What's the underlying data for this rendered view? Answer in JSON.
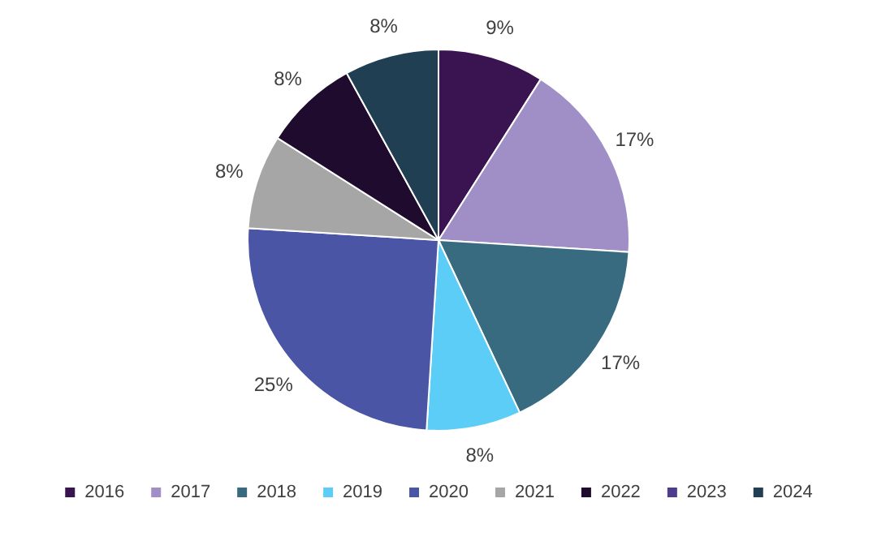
{
  "chart_data": {
    "type": "pie",
    "categories": [
      "2016",
      "2017",
      "2018",
      "2019",
      "2020",
      "2021",
      "2022",
      "2023",
      "2024"
    ],
    "values": [
      9,
      17,
      17,
      8,
      25,
      8,
      8,
      0,
      8
    ],
    "colors": [
      "#3a1450",
      "#a08fc6",
      "#386b80",
      "#5ccdf6",
      "#4a55a6",
      "#a6a6a6",
      "#1f0b2e",
      "#4e3d8e",
      "#213f52"
    ],
    "value_labels": [
      "9%",
      "17%",
      "17%",
      "8%",
      "25%",
      "8%",
      "8%",
      null,
      "8%"
    ],
    "legend": "bottom"
  }
}
